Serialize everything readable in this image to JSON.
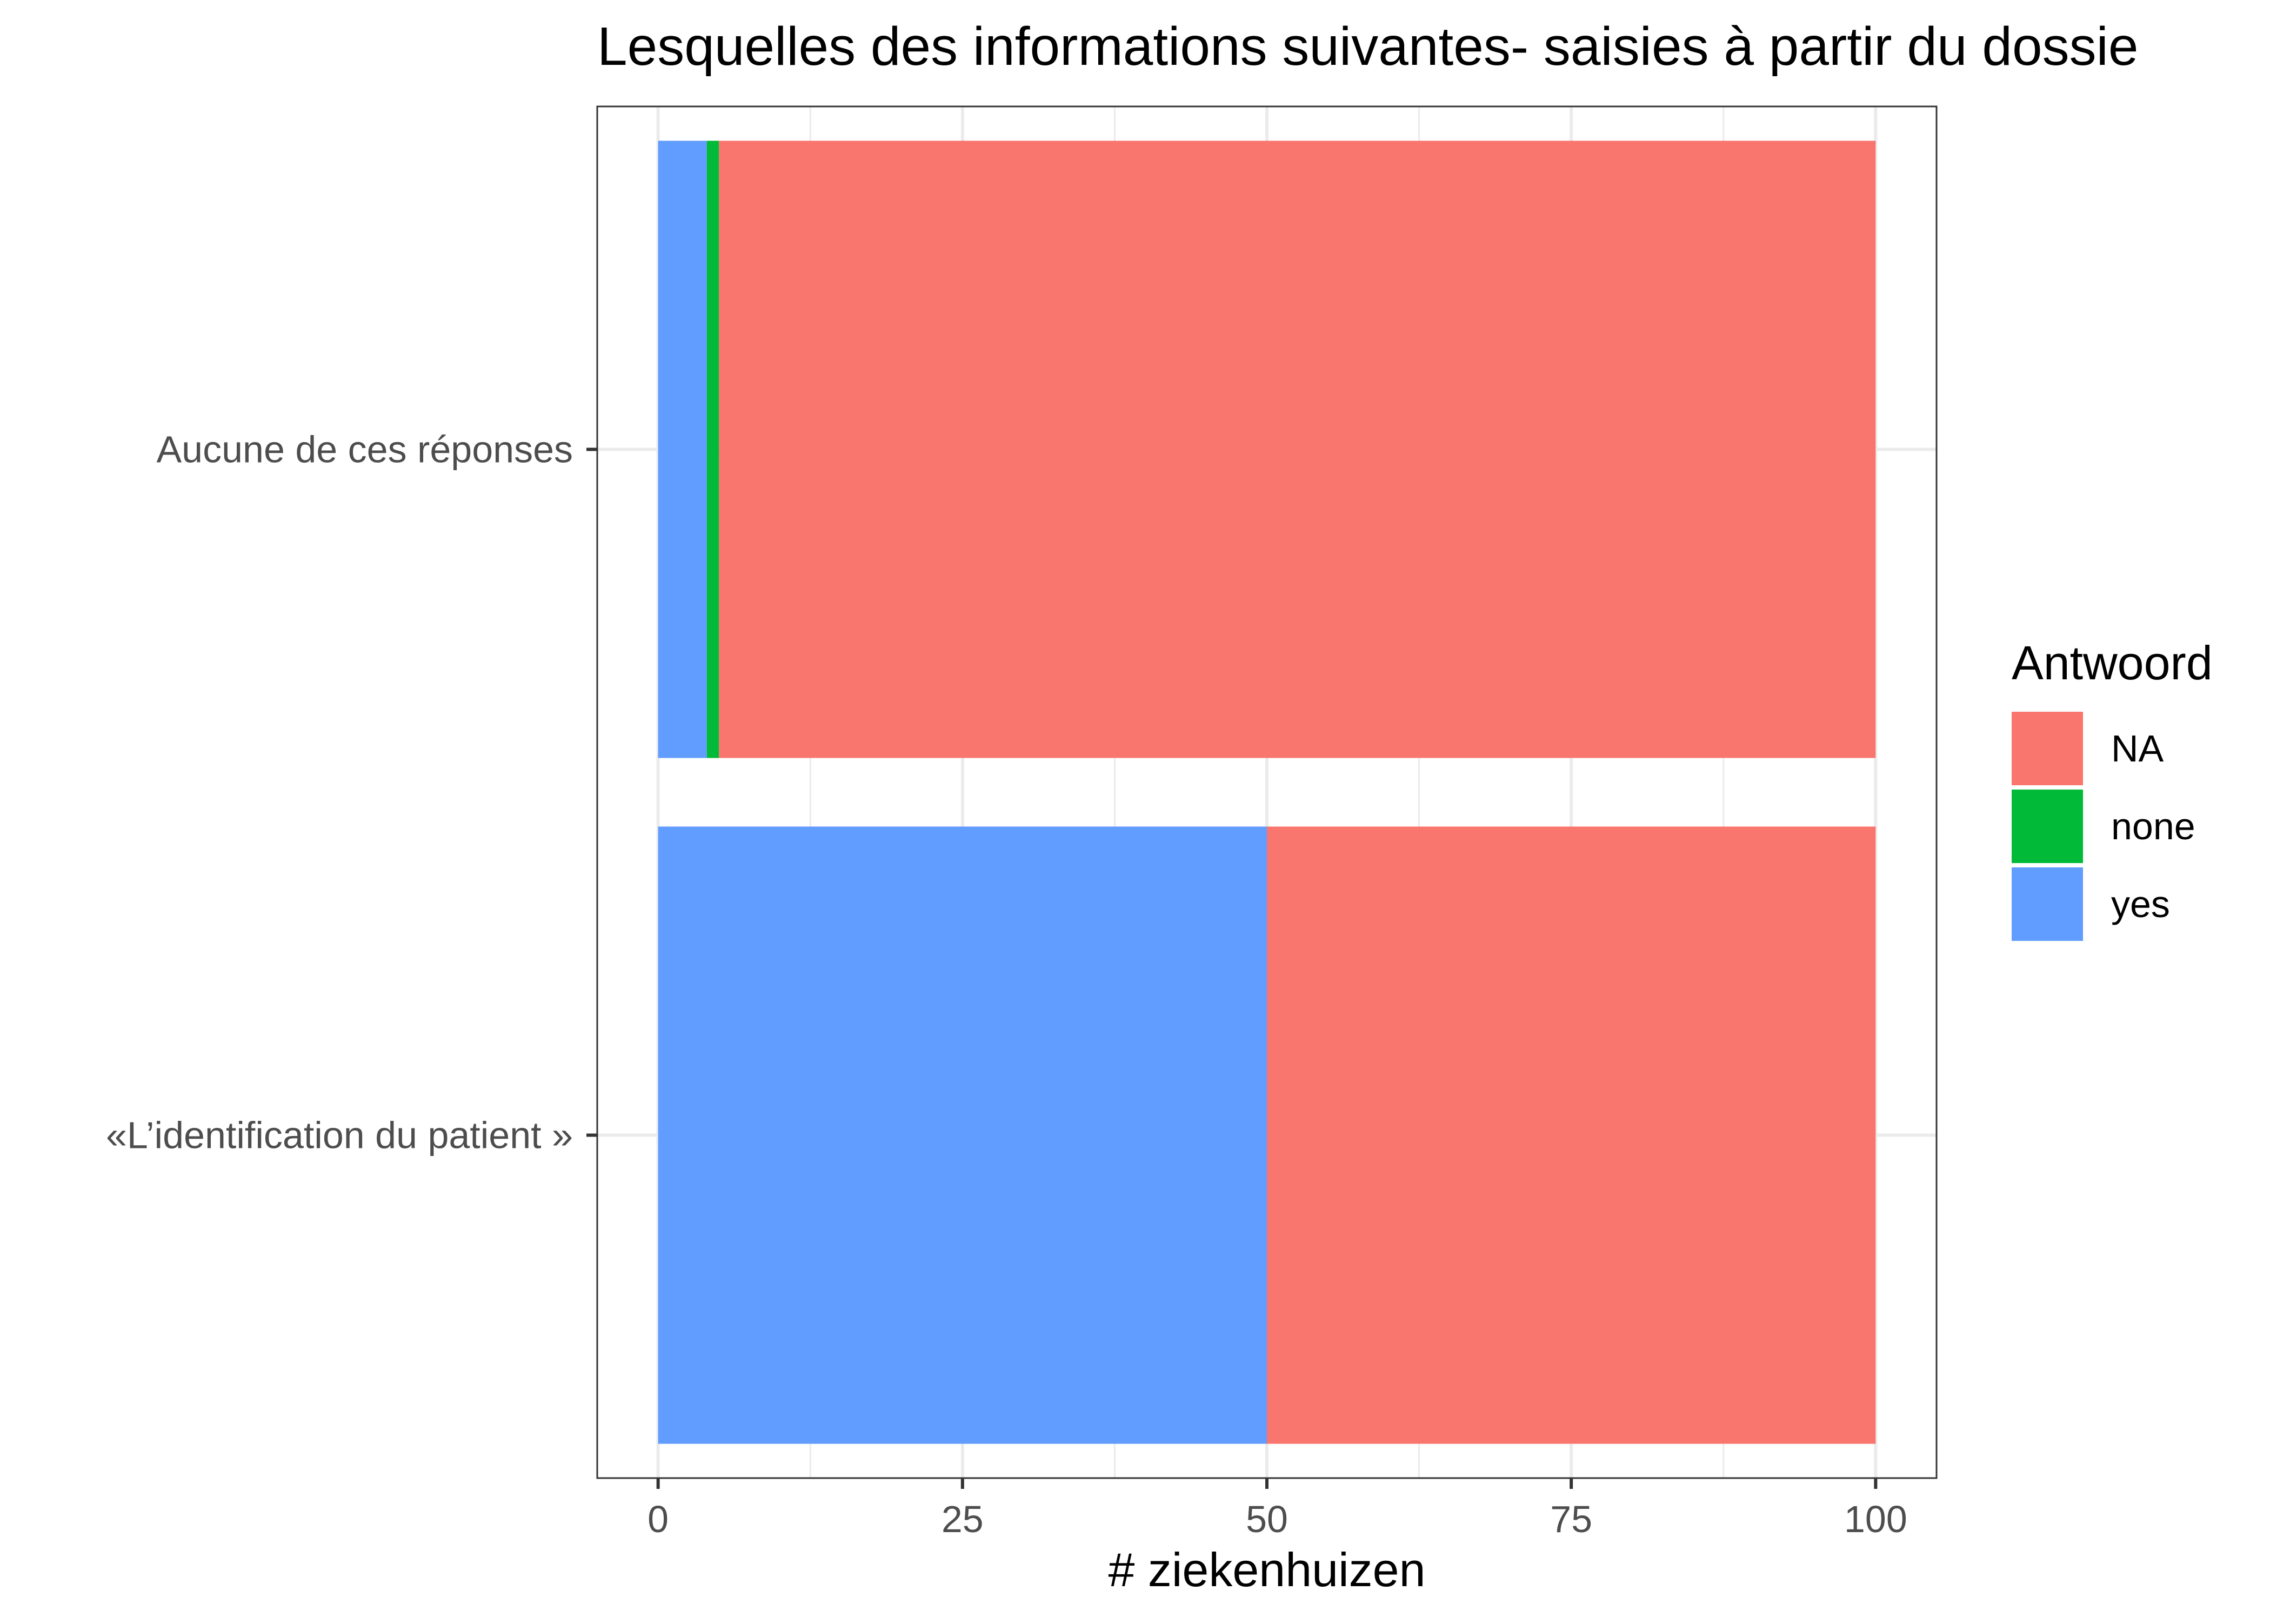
{
  "chart_data": {
    "type": "bar",
    "orientation": "horizontal",
    "stacked": true,
    "title": "Lesquelles des informations suivantes- saisies à partir du dossie",
    "xlabel": "# ziekenhuizen",
    "ylabel": "",
    "xlim": [
      -5,
      105
    ],
    "xticks": [
      0,
      25,
      50,
      75,
      100
    ],
    "grid": true,
    "legend_position": "right",
    "legend_title": "Antwoord",
    "categories": [
      "Aucune de ces réponses",
      "«L’identification du patient »"
    ],
    "series": [
      {
        "name": "yes",
        "color": "#619CFF",
        "values": [
          4,
          50
        ]
      },
      {
        "name": "none",
        "color": "#00BA38",
        "values": [
          1,
          0
        ]
      },
      {
        "name": "NA",
        "color": "#F8766D",
        "values": [
          95,
          50
        ]
      }
    ],
    "legend_order": [
      "NA",
      "none",
      "yes"
    ]
  }
}
